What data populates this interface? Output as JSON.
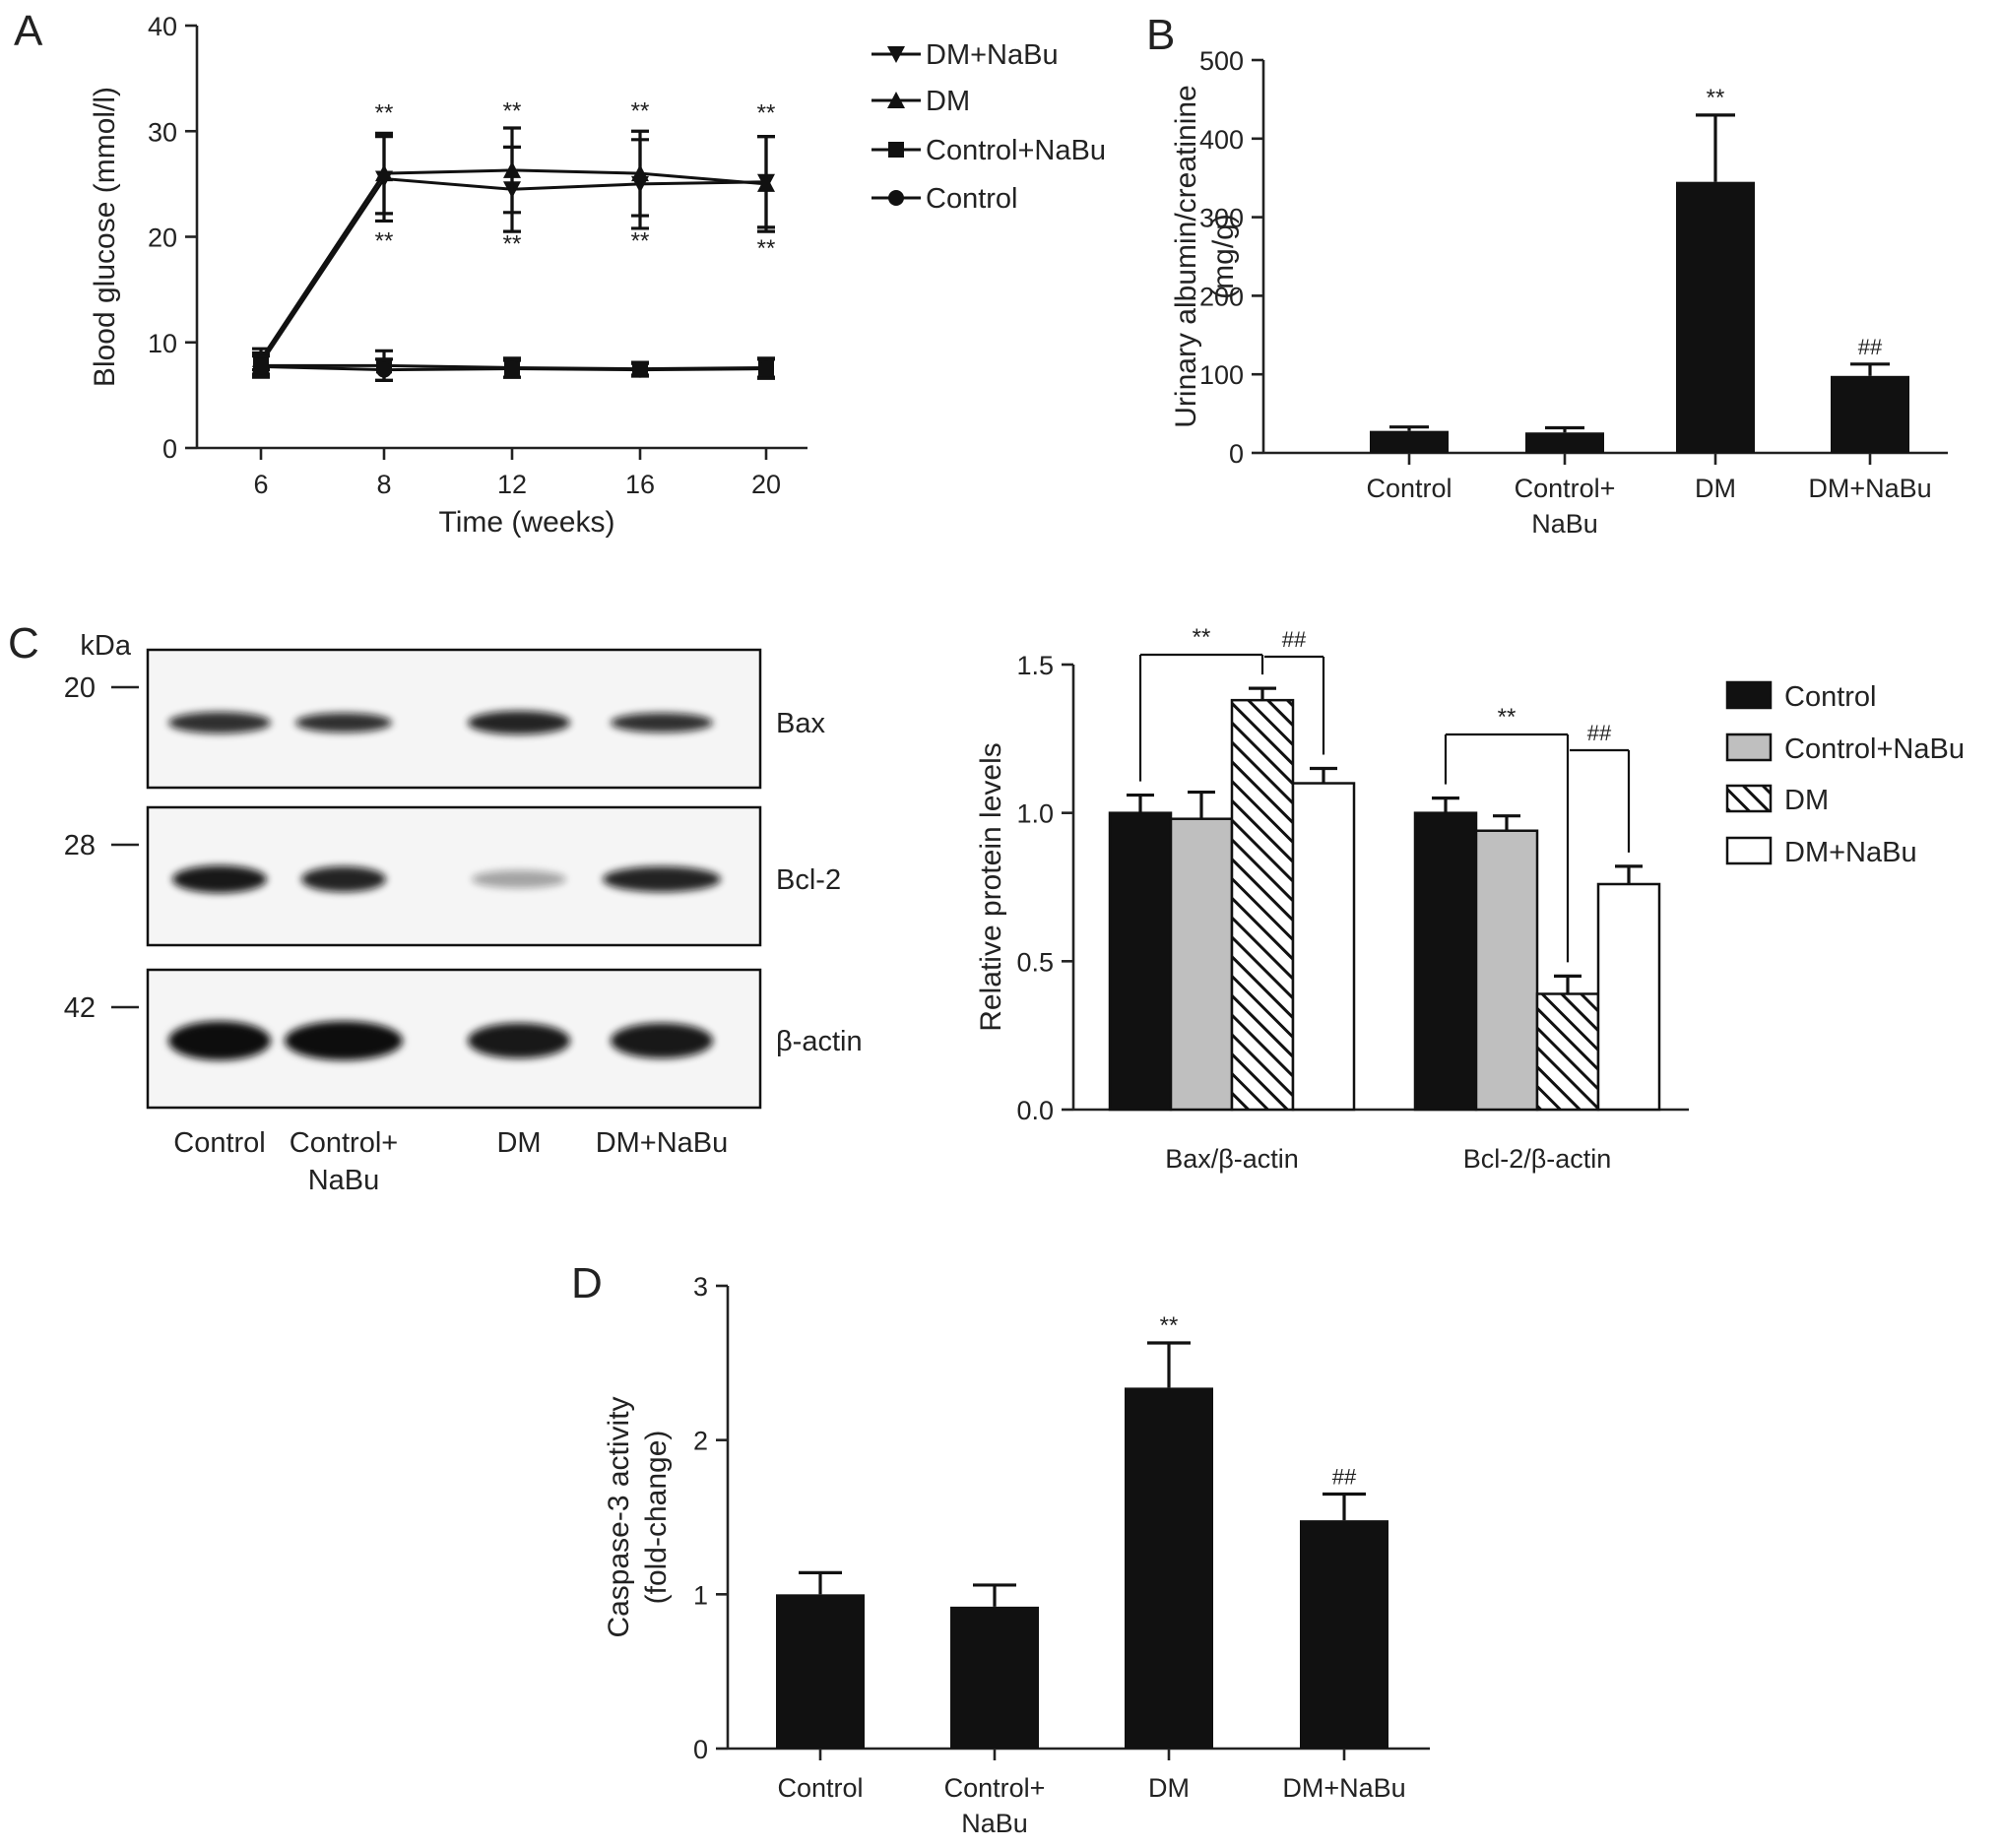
{
  "colors": {
    "black": "#111111",
    "gray": "#bfbfbf",
    "white": "#ffffff",
    "hatch": "#111111"
  },
  "panels": [
    {
      "id": "A",
      "chart_data": {
        "type": "line",
        "xlabel": "Time (weeks)",
        "ylabel": "Blood glucose (mmol/l)",
        "ylim": [
          0,
          40
        ],
        "yticks": [
          "0",
          "10",
          "20",
          "30",
          "40"
        ],
        "x": [
          6,
          8,
          12,
          16,
          20
        ],
        "xticks": [
          "6",
          "8",
          "12",
          "16",
          "20"
        ],
        "legend": "top-right",
        "series": [
          {
            "name": "DM+NaBu",
            "marker": "triangle-down",
            "values": [
              8.0,
              25.5,
              24.5,
              25.0,
              25.2
            ],
            "errors": [
              1.0,
              4.0,
              4.0,
              4.2,
              4.3
            ]
          },
          {
            "name": "DM",
            "marker": "triangle-up",
            "values": [
              8.4,
              26.0,
              26.3,
              26.0,
              25.0
            ],
            "errors": [
              1.0,
              3.8,
              4.0,
              4.0,
              4.5
            ]
          },
          {
            "name": "Control+NaBu",
            "marker": "square",
            "values": [
              7.8,
              7.8,
              7.6,
              7.5,
              7.6
            ],
            "errors": [
              1.0,
              1.4,
              0.9,
              0.6,
              0.9
            ]
          },
          {
            "name": "Control",
            "marker": "circle",
            "values": [
              7.7,
              7.4,
              7.5,
              7.4,
              7.5
            ],
            "errors": [
              1.0,
              1.0,
              0.8,
              0.6,
              0.9
            ]
          }
        ],
        "annotations": [
          {
            "text": "**",
            "x": 8,
            "y": 31.0
          },
          {
            "text": "**",
            "x": 12,
            "y": 31.2
          },
          {
            "text": "**",
            "x": 16,
            "y": 31.2
          },
          {
            "text": "**",
            "x": 20,
            "y": 31.0
          },
          {
            "text": "**",
            "x": 8,
            "y": 18.9
          },
          {
            "text": "**",
            "x": 12,
            "y": 18.6
          },
          {
            "text": "**",
            "x": 16,
            "y": 18.9
          },
          {
            "text": "**",
            "x": 20,
            "y": 18.2
          }
        ]
      }
    },
    {
      "id": "B",
      "chart_data": {
        "type": "bar",
        "categories": [
          "Control",
          "Control+\nNaBu",
          "DM",
          "DM+NaBu"
        ],
        "values": [
          28,
          26,
          345,
          98
        ],
        "errors": [
          5,
          6,
          85,
          15
        ],
        "ylabel": "Urinary albumin/creatinine\n(mg/g)",
        "xlabel": "",
        "ylim": [
          0,
          500
        ],
        "yticks": [
          "0",
          "100",
          "200",
          "300",
          "400",
          "500"
        ],
        "significance": [
          "",
          "",
          "**",
          "##"
        ]
      }
    },
    {
      "id": "C",
      "blot": {
        "kda_label": "kDa",
        "markers": [
          "20",
          "28",
          "42"
        ],
        "rows": [
          "Bax",
          "Bcl-2",
          "β-actin"
        ],
        "lanes": [
          "Control",
          "Control+\nNaBu",
          "DM",
          "DM+NaBu"
        ]
      },
      "chart_data": {
        "type": "bar",
        "categories": [
          "Bax/β-actin",
          "Bcl-2/β-actin"
        ],
        "ylabel": "Relative protein levels",
        "xlabel": "",
        "ylim": [
          0,
          1.5
        ],
        "yticks": [
          "0.0",
          "0.5",
          "1.0",
          "1.5"
        ],
        "legend": "right",
        "series": [
          {
            "name": "Control",
            "fill": "black",
            "values": [
              1.0,
              1.0
            ],
            "errors": [
              0.06,
              0.05
            ]
          },
          {
            "name": "Control+NaBu",
            "fill": "gray",
            "values": [
              0.98,
              0.94
            ],
            "errors": [
              0.09,
              0.05
            ]
          },
          {
            "name": "DM",
            "fill": "hatch",
            "values": [
              1.38,
              0.39
            ],
            "errors": [
              0.04,
              0.06
            ]
          },
          {
            "name": "DM+NaBu",
            "fill": "white",
            "values": [
              1.1,
              0.76
            ],
            "errors": [
              0.05,
              0.06
            ]
          }
        ],
        "brackets": [
          {
            "group": 0,
            "from": 0,
            "to": 2,
            "text": "**"
          },
          {
            "group": 0,
            "from": 2,
            "to": 3,
            "text": "##"
          },
          {
            "group": 1,
            "from": 0,
            "to": 2,
            "text": "**"
          },
          {
            "group": 1,
            "from": 2,
            "to": 3,
            "text": "##"
          }
        ]
      }
    },
    {
      "id": "D",
      "chart_data": {
        "type": "bar",
        "categories": [
          "Control",
          "Control+\nNaBu",
          "DM",
          "DM+NaBu"
        ],
        "values": [
          1.0,
          0.92,
          2.34,
          1.48
        ],
        "errors": [
          0.14,
          0.14,
          0.29,
          0.17
        ],
        "ylabel": "Caspase-3 activity\n(fold-change)",
        "xlabel": "",
        "ylim": [
          0,
          3
        ],
        "yticks": [
          "0",
          "1",
          "2",
          "3"
        ],
        "significance": [
          "",
          "",
          "**",
          "##"
        ]
      }
    }
  ]
}
